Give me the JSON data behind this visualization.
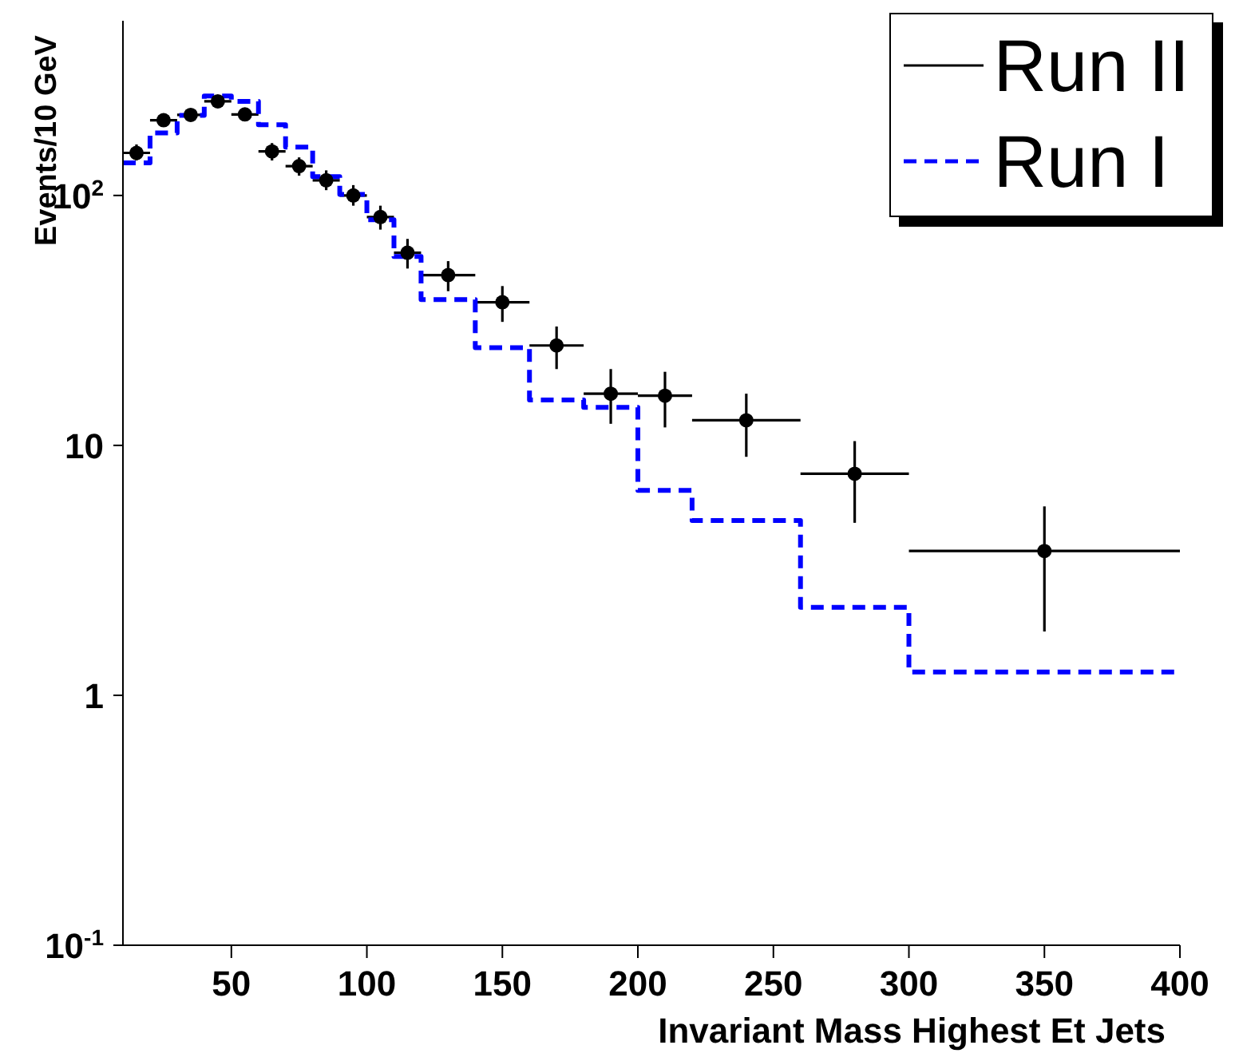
{
  "chart_data": {
    "type": "scatter",
    "xlabel": "Invariant Mass Highest Et Jets",
    "ylabel": "Events/10 GeV",
    "xlim": [
      10,
      400
    ],
    "xticks": [
      50,
      100,
      150,
      200,
      250,
      300,
      350,
      400
    ],
    "ylim": [
      0.1,
      500
    ],
    "yticks": [
      {
        "value": 0.1,
        "label": "10$^{-1}$"
      },
      1,
      10,
      {
        "value": 100,
        "label": "10$^{2}$"
      }
    ],
    "log": "y",
    "legend": "top right",
    "series": [
      {
        "name": "Run II",
        "type": "scatter",
        "color": "#000000",
        "marker": "circle",
        "line_style": "solid",
        "x": [
          15,
          25,
          35,
          45,
          55,
          65,
          75,
          85,
          95,
          105,
          115,
          130,
          150,
          170,
          190,
          210,
          240,
          280,
          350
        ],
        "values": [
          148,
          200,
          210,
          238,
          211,
          150,
          131,
          115,
          100,
          82,
          59,
          48,
          37.4,
          25.1,
          16.1,
          15.8,
          12.6,
          7.7,
          3.78
        ],
        "errors": [
          [
            138,
            160
          ],
          [
            188,
            212
          ],
          [
            198,
            222
          ],
          [
            225,
            252
          ],
          [
            199,
            224
          ],
          [
            138,
            162
          ],
          [
            120,
            142
          ],
          [
            105,
            126
          ],
          [
            91,
            110
          ],
          [
            73,
            91
          ],
          [
            51,
            67
          ],
          [
            41.4,
            54.6
          ],
          [
            31.2,
            43.4
          ],
          [
            20.2,
            29.9
          ],
          [
            12.2,
            20.2
          ],
          [
            11.8,
            19.7
          ],
          [
            9,
            16.1
          ],
          [
            4.9,
            10.4
          ],
          [
            1.8,
            5.7
          ]
        ],
        "xerrors": [
          5,
          5,
          5,
          5,
          5,
          5,
          5,
          5,
          5,
          5,
          5,
          10,
          10,
          10,
          10,
          10,
          20,
          20,
          50
        ]
      },
      {
        "name": "Run I",
        "type": "histogram",
        "color": "#0000ff",
        "line_style": "dashed",
        "bins": [
          10,
          20,
          30,
          40,
          50,
          60,
          70,
          80,
          90,
          100,
          110,
          120,
          140,
          160,
          180,
          200,
          220,
          260,
          300,
          400
        ],
        "values": [
          135,
          178,
          209,
          250,
          238,
          192,
          156,
          119,
          101,
          80,
          57,
          38.3,
          24.6,
          15.2,
          14.2,
          6.6,
          5.0,
          2.25,
          1.24
        ]
      }
    ]
  }
}
